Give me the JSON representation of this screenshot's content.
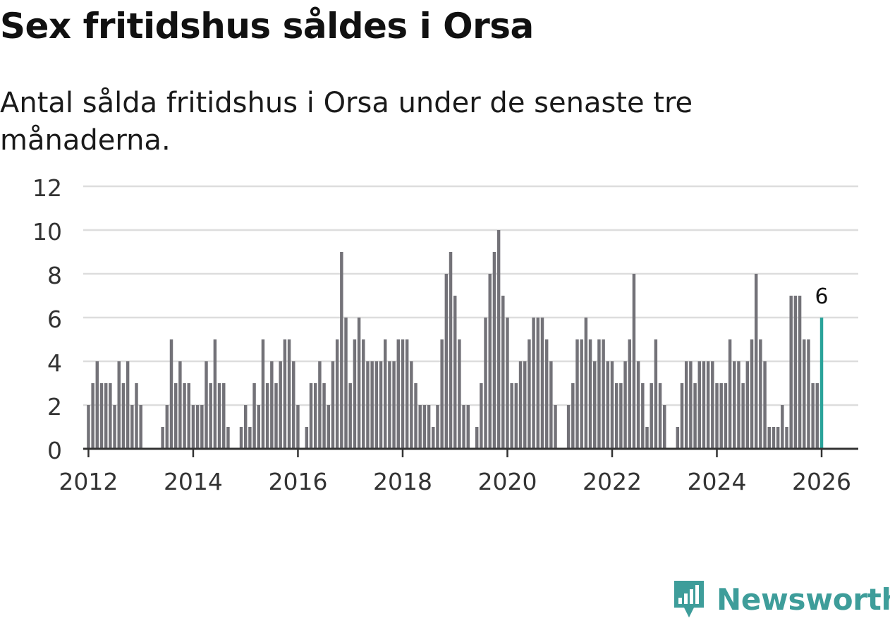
{
  "title": "Sex fritidshus såldes i Orsa",
  "subtitle": "Antal sålda fritidshus i Orsa under de senaste tre månaderna.",
  "brand": {
    "name": "Newsworthy",
    "icon": "newsworthy-logo-icon",
    "color": "#3e9d9a"
  },
  "colors": {
    "bar": "#737278",
    "highlight": "#2aa39a",
    "grid": "#dddddd",
    "axis": "#333333"
  },
  "chart_data": {
    "type": "bar",
    "title": "Sex fritidshus såldes i Orsa",
    "subtitle": "Antal sålda fritidshus i Orsa under de senaste tre månaderna.",
    "xlabel": "",
    "ylabel": "",
    "ylim": [
      0,
      12
    ],
    "yticks": [
      "0",
      "2",
      "4",
      "6",
      "8",
      "10",
      "12"
    ],
    "xlim": [
      2011.9,
      2026.7
    ],
    "xticks": [
      "2012",
      "2014",
      "2016",
      "2018",
      "2020",
      "2022",
      "2024",
      "2026"
    ],
    "grid": true,
    "interval": "monthly",
    "start": "2012-01",
    "highlight_label": "6",
    "values": [
      2,
      3,
      4,
      3,
      3,
      3,
      2,
      4,
      3,
      4,
      2,
      3,
      2,
      null,
      null,
      null,
      null,
      1,
      2,
      5,
      3,
      4,
      3,
      3,
      2,
      2,
      2,
      4,
      3,
      5,
      3,
      3,
      1,
      null,
      null,
      1,
      2,
      1,
      3,
      2,
      5,
      3,
      4,
      3,
      4,
      5,
      5,
      4,
      2,
      null,
      1,
      3,
      3,
      4,
      3,
      2,
      4,
      5,
      9,
      6,
      3,
      5,
      6,
      5,
      4,
      4,
      4,
      4,
      5,
      4,
      4,
      5,
      5,
      5,
      4,
      3,
      2,
      2,
      2,
      1,
      2,
      5,
      8,
      9,
      7,
      5,
      2,
      2,
      null,
      1,
      3,
      6,
      8,
      9,
      10,
      7,
      6,
      3,
      3,
      4,
      4,
      5,
      6,
      6,
      6,
      5,
      4,
      2,
      null,
      null,
      2,
      3,
      5,
      5,
      6,
      5,
      4,
      5,
      5,
      4,
      4,
      3,
      3,
      4,
      5,
      8,
      4,
      3,
      1,
      3,
      5,
      3,
      2,
      null,
      null,
      1,
      3,
      4,
      4,
      3,
      4,
      4,
      4,
      4,
      3,
      3,
      3,
      5,
      4,
      4,
      3,
      4,
      5,
      8,
      5,
      4,
      1,
      1,
      1,
      2,
      1,
      7,
      7,
      7,
      5,
      5,
      3,
      3,
      6
    ]
  }
}
